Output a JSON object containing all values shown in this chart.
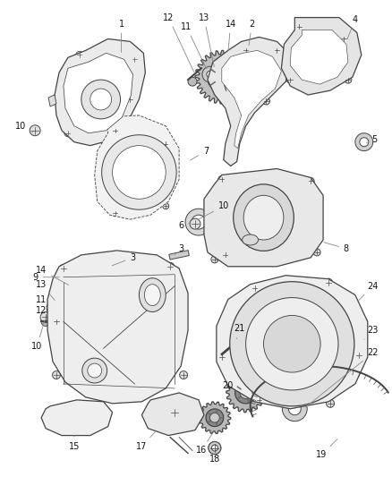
{
  "background_color": "#ffffff",
  "fig_width": 4.38,
  "fig_height": 5.33,
  "dpi": 100,
  "line_color": "#444444",
  "label_color": "#111111",
  "label_fontsize": 7.0
}
